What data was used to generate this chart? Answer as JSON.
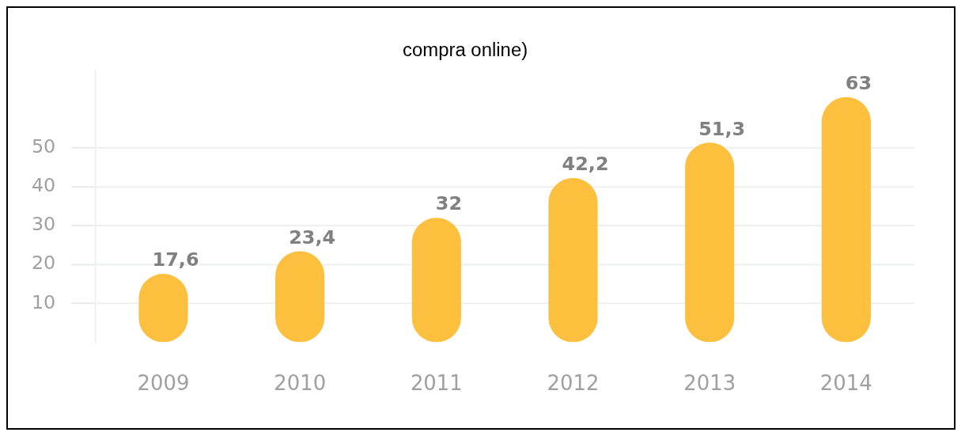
{
  "chart_data": {
    "type": "bar",
    "title": "compra online)",
    "categories": [
      "2009",
      "2010",
      "2011",
      "2012",
      "2013",
      "2014"
    ],
    "values": [
      17.6,
      23.4,
      32,
      42.2,
      51.3,
      63
    ],
    "value_labels": [
      "17,6",
      "23,4",
      "32",
      "42,2",
      "51,3",
      "63"
    ],
    "color": "#fcc03e",
    "ylim": [
      0,
      70
    ],
    "yticks": [
      10,
      20,
      30,
      40,
      50
    ],
    "grid": "y",
    "legend": false
  }
}
